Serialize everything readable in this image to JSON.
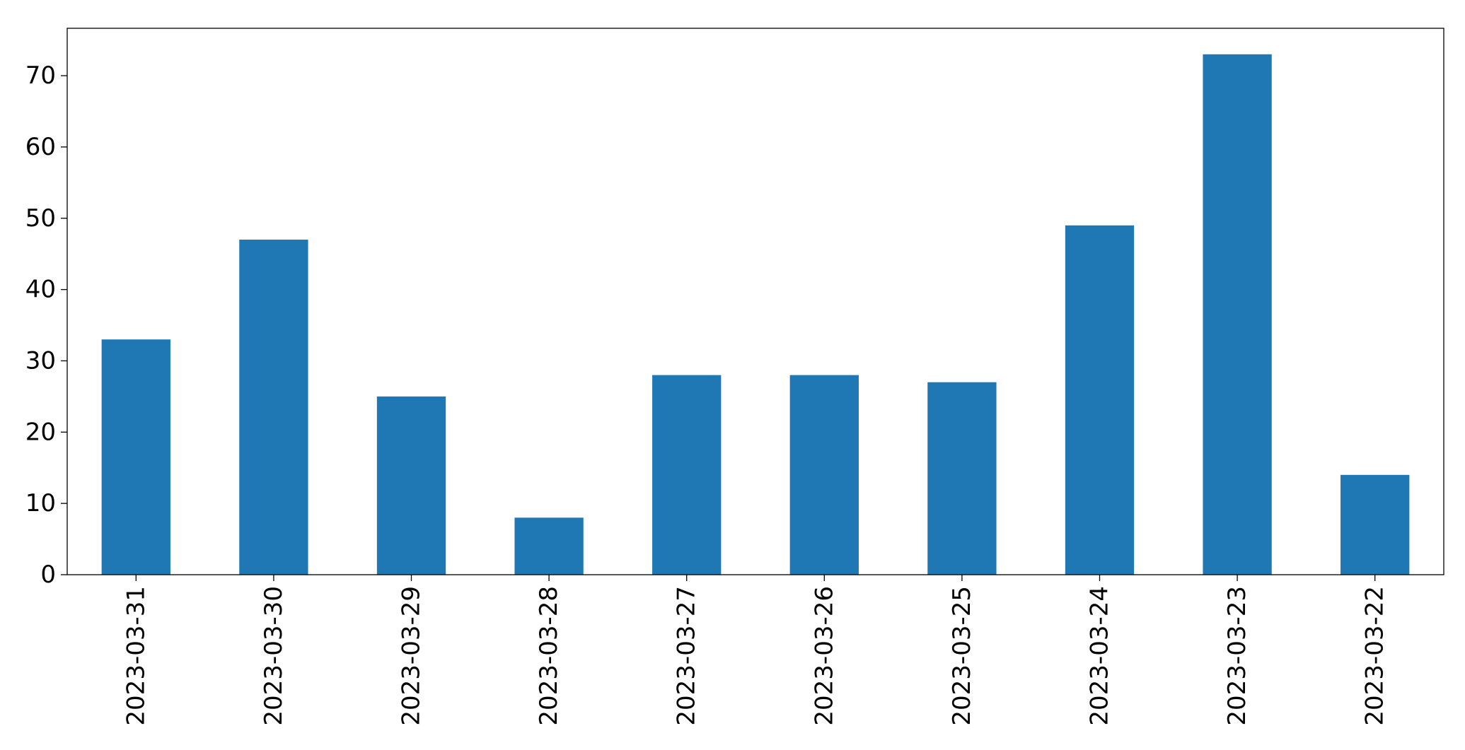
{
  "chart_data": {
    "type": "bar",
    "categories": [
      "2023-03-31",
      "2023-03-30",
      "2023-03-29",
      "2023-03-28",
      "2023-03-27",
      "2023-03-26",
      "2023-03-25",
      "2023-03-24",
      "2023-03-23",
      "2023-03-22"
    ],
    "values": [
      33,
      47,
      25,
      8,
      28,
      28,
      27,
      49,
      73,
      14
    ],
    "title": "",
    "xlabel": "",
    "ylabel": "",
    "ylim": [
      0,
      76.65
    ],
    "yticks": [
      0,
      10,
      20,
      30,
      40,
      50,
      60,
      70
    ],
    "grid": false,
    "legend": "none",
    "bar_color": "#1f77b4"
  }
}
